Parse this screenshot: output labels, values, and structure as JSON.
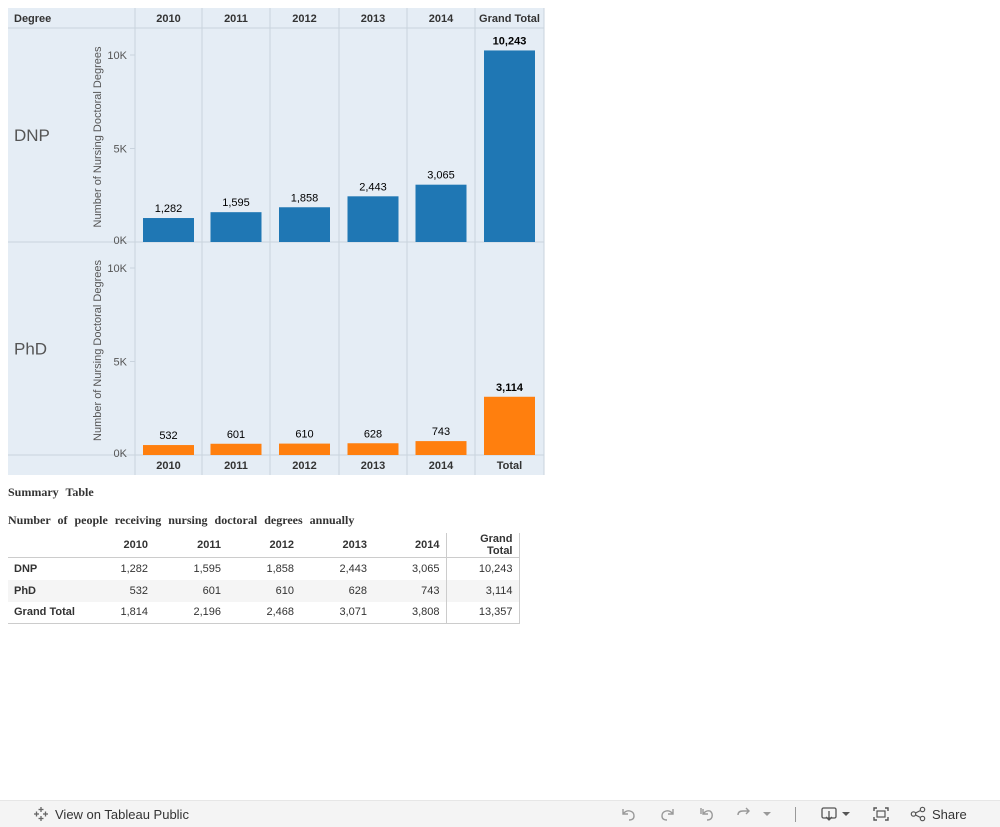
{
  "chart_data": {
    "type": "bar",
    "header_label": "Degree",
    "columns": [
      "2010",
      "2011",
      "2012",
      "2013",
      "2014"
    ],
    "total_column_header": "Grand Total",
    "footer_columns": [
      "2010",
      "2011",
      "2012",
      "2013",
      "2014",
      "Total"
    ],
    "y_axis_title": "Number of Nursing Doctoral Degrees",
    "y_ticks": [
      "0K",
      "5K",
      "10K"
    ],
    "ylim": [
      0,
      10800
    ],
    "series": [
      {
        "name": "DNP",
        "color": "#1f77b4",
        "values": [
          1282,
          1595,
          1858,
          2443,
          3065
        ],
        "labels": [
          "1,282",
          "1,595",
          "1,858",
          "2,443",
          "3,065"
        ],
        "total": 10243,
        "total_label": "10,243"
      },
      {
        "name": "PhD",
        "color": "#ff7f0e",
        "values": [
          532,
          601,
          610,
          628,
          743
        ],
        "labels": [
          "532",
          "601",
          "610",
          "628",
          "743"
        ],
        "total": 3114,
        "total_label": "3,114"
      }
    ],
    "grid": true
  },
  "colors": {
    "panel_bg": "#e5edf5",
    "panel_line": "#c9d3dd",
    "dnp": "#1f77b4",
    "phd": "#ff7f0e"
  },
  "summary": {
    "title": "Summary Table",
    "subtitle": "Number of people receiving nursing doctoral degrees annually",
    "headers": [
      "",
      "2010",
      "2011",
      "2012",
      "2013",
      "2014",
      "Grand Total"
    ],
    "rows": [
      {
        "label": "DNP",
        "cells": [
          "1,282",
          "1,595",
          "1,858",
          "2,443",
          "3,065",
          "10,243"
        ]
      },
      {
        "label": "PhD",
        "cells": [
          "532",
          "601",
          "610",
          "628",
          "743",
          "3,114"
        ]
      },
      {
        "label": "Grand Total",
        "cells": [
          "1,814",
          "2,196",
          "2,468",
          "3,071",
          "3,808",
          "13,357"
        ]
      }
    ]
  },
  "toolbar": {
    "view_label": "View on Tableau Public",
    "share_label": "Share",
    "icons": [
      "tableau-logo-icon",
      "undo-icon",
      "redo-icon",
      "revert-icon",
      "refresh-icon",
      "dropdown-icon",
      "download-icon",
      "fullscreen-icon",
      "share-icon"
    ]
  }
}
